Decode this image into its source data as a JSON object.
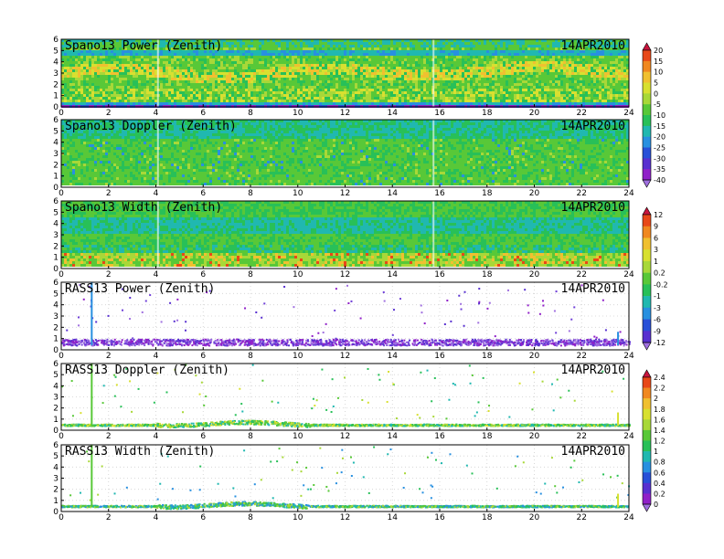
{
  "chart_data": [
    {
      "type": "heatmap",
      "title": "Spano13 Power (Zenith)",
      "date": "14APR2010",
      "kind": "radar",
      "tone": "power",
      "xlim": [
        0,
        24
      ],
      "ylim": [
        0,
        6
      ],
      "xticks": [
        "0",
        "2",
        "4",
        "6",
        "8",
        "10",
        "12",
        "14",
        "16",
        "18",
        "20",
        "22",
        "24"
      ],
      "yticks": [
        "0",
        "1",
        "2",
        "3",
        "4",
        "5",
        "6"
      ]
    },
    {
      "type": "heatmap",
      "title": "Spano13 Doppler (Zenith)",
      "date": "14APR2010",
      "kind": "radar",
      "tone": "doppler",
      "xlim": [
        0,
        24
      ],
      "ylim": [
        0,
        6
      ],
      "xticks": [
        "0",
        "2",
        "4",
        "6",
        "8",
        "10",
        "12",
        "14",
        "16",
        "18",
        "20",
        "22",
        "24"
      ],
      "yticks": [
        "0",
        "1",
        "2",
        "3",
        "4",
        "5",
        "6"
      ]
    },
    {
      "type": "heatmap",
      "title": "Spano13 Width (Zenith)",
      "date": "14APR2010",
      "kind": "radar",
      "tone": "width",
      "xlim": [
        0,
        24
      ],
      "ylim": [
        0,
        6
      ],
      "xticks": [
        "0",
        "2",
        "4",
        "6",
        "8",
        "10",
        "12",
        "14",
        "16",
        "18",
        "20",
        "22",
        "24"
      ],
      "yticks": [
        "0",
        "1",
        "2",
        "3",
        "4",
        "5",
        "6"
      ]
    },
    {
      "type": "scatter",
      "title": "RASS13 Power (Zenith)",
      "date": "14APR2010",
      "kind": "rass",
      "tone": "rpower",
      "xlim": [
        0,
        24
      ],
      "ylim": [
        0,
        6
      ],
      "xticks": [
        "0",
        "2",
        "4",
        "6",
        "8",
        "10",
        "12",
        "14",
        "16",
        "18",
        "20",
        "22",
        "24"
      ],
      "yticks": [
        "0",
        "1",
        "2",
        "3",
        "4",
        "5",
        "6"
      ]
    },
    {
      "type": "scatter",
      "title": "RASS13 Doppler (Zenith)",
      "date": "14APR2010",
      "kind": "rass",
      "tone": "rdoppler",
      "xlim": [
        0,
        24
      ],
      "ylim": [
        0,
        6
      ],
      "xticks": [
        "0",
        "2",
        "4",
        "6",
        "8",
        "10",
        "12",
        "14",
        "16",
        "18",
        "20",
        "22",
        "24"
      ],
      "yticks": [
        "0",
        "1",
        "2",
        "3",
        "4",
        "5",
        "6"
      ]
    },
    {
      "type": "scatter",
      "title": "RASS13 Width (Zenith)",
      "date": "14APR2010",
      "kind": "rass",
      "tone": "rwidth",
      "xlim": [
        0,
        24
      ],
      "ylim": [
        0,
        6
      ],
      "xticks": [
        "0",
        "2",
        "4",
        "6",
        "8",
        "10",
        "12",
        "14",
        "16",
        "18",
        "20",
        "22",
        "24"
      ],
      "yticks": [
        "0",
        "1",
        "2",
        "3",
        "4",
        "5",
        "6"
      ]
    }
  ],
  "colorbars": [
    {
      "labels": [
        "20",
        "15",
        "10",
        "5",
        "0",
        "-5",
        "-10",
        "-15",
        "-20",
        "-25",
        "-30",
        "-35",
        "-40"
      ],
      "colors": [
        "#c8143c",
        "#e84818",
        "#f08820",
        "#f0c030",
        "#d8e030",
        "#a8d838",
        "#58c838",
        "#28c058",
        "#20b8b0",
        "#2890e0",
        "#2850d8",
        "#5830d0",
        "#9020c8",
        "#a070e0"
      ]
    },
    {
      "labels": [
        "12",
        "9",
        "6",
        "3",
        "1",
        "0.2",
        "-0.2",
        "-1",
        "-3",
        "-6",
        "-9",
        "-12"
      ],
      "colors": [
        "#c8143c",
        "#e84818",
        "#f08820",
        "#f0c030",
        "#d8e030",
        "#a8d838",
        "#58c838",
        "#28c058",
        "#20b8b0",
        "#2890e0",
        "#2850d8",
        "#5830d0",
        "#a070e0"
      ]
    },
    {
      "labels": [
        "2.4",
        "2.2",
        "2",
        "1.8",
        "1.6",
        "1.4",
        "1.2",
        "1",
        "0.8",
        "0.6",
        "0.4",
        "0.2",
        "0"
      ],
      "colors": [
        "#c8143c",
        "#e84818",
        "#f08820",
        "#f0c030",
        "#d8e030",
        "#a8d838",
        "#58c838",
        "#28c058",
        "#20b8b0",
        "#2890e0",
        "#2850d8",
        "#5830d0",
        "#9020c8",
        "#a070e0"
      ]
    }
  ]
}
